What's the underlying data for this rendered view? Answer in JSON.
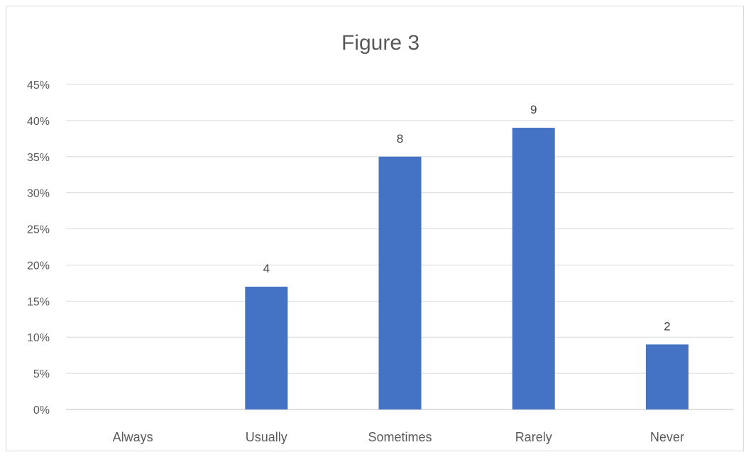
{
  "chart_data": {
    "type": "bar",
    "title": "Figure 3",
    "categories": [
      "Always",
      "Usually",
      "Sometimes",
      "Rarely",
      "Never"
    ],
    "values": [
      0,
      0.17,
      0.35,
      0.39,
      0.09
    ],
    "data_labels": [
      "",
      "4",
      "8",
      "9",
      "2"
    ],
    "ylim": [
      0,
      0.45
    ],
    "yticks": [
      0,
      0.05,
      0.1,
      0.15,
      0.2,
      0.25,
      0.3,
      0.35,
      0.4,
      0.45
    ],
    "ytick_labels": [
      "0%",
      "5%",
      "10%",
      "15%",
      "20%",
      "25%",
      "30%",
      "35%",
      "40%",
      "45%"
    ],
    "grid": true,
    "legend": "none",
    "bar_color": "#4472C4"
  }
}
